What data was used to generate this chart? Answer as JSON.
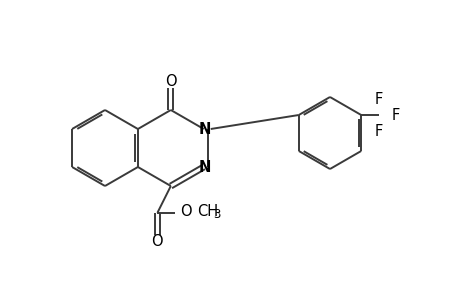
{
  "bg": "#ffffff",
  "lc": "#3a3a3a",
  "tc": "#000000",
  "figsize": [
    4.6,
    3.0
  ],
  "dpi": 100,
  "bw": 1.4,
  "fs": 10.5,
  "fs_sub": 8.5,
  "bc": [
    105.0,
    148.0
  ],
  "R": 38.0,
  "tol_c": [
    330.0,
    133.0
  ],
  "R_tol": 36.0
}
